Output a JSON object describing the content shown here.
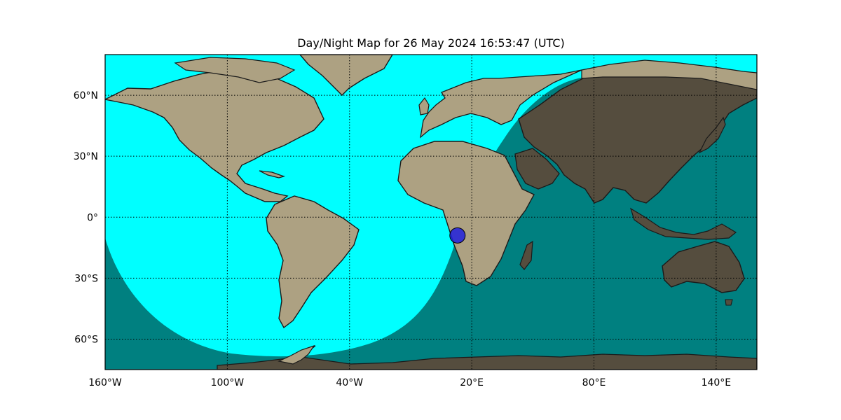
{
  "title": "Day/Night Map for 26 May 2024 16:53:47 (UTC)",
  "map": {
    "projection": "equirectangular",
    "lon_range": [
      -160,
      160
    ],
    "lat_range": [
      -75,
      80
    ],
    "x_ticks": [
      {
        "lon": -160,
        "label": "160°W"
      },
      {
        "lon": -100,
        "label": "100°W"
      },
      {
        "lon": -40,
        "label": "40°W"
      },
      {
        "lon": 20,
        "label": "20°E"
      },
      {
        "lon": 80,
        "label": "80°E"
      },
      {
        "lon": 140,
        "label": "140°E"
      }
    ],
    "y_ticks": [
      {
        "lat": 60,
        "label": "60°N"
      },
      {
        "lat": 30,
        "label": "30°N"
      },
      {
        "lat": 0,
        "label": "0°"
      },
      {
        "lat": -30,
        "label": "30°S"
      },
      {
        "lat": -60,
        "label": "60°S"
      }
    ],
    "subsolar_marker": {
      "lon": 13,
      "lat": -9
    },
    "colors": {
      "ocean_day": "#00ffff",
      "ocean_night": "#008080",
      "land_day": "#ada182",
      "land_night": "#554d3e",
      "coast": "#1a1a1a",
      "marker_fill": "#2020dd",
      "frame": "#000000"
    }
  }
}
